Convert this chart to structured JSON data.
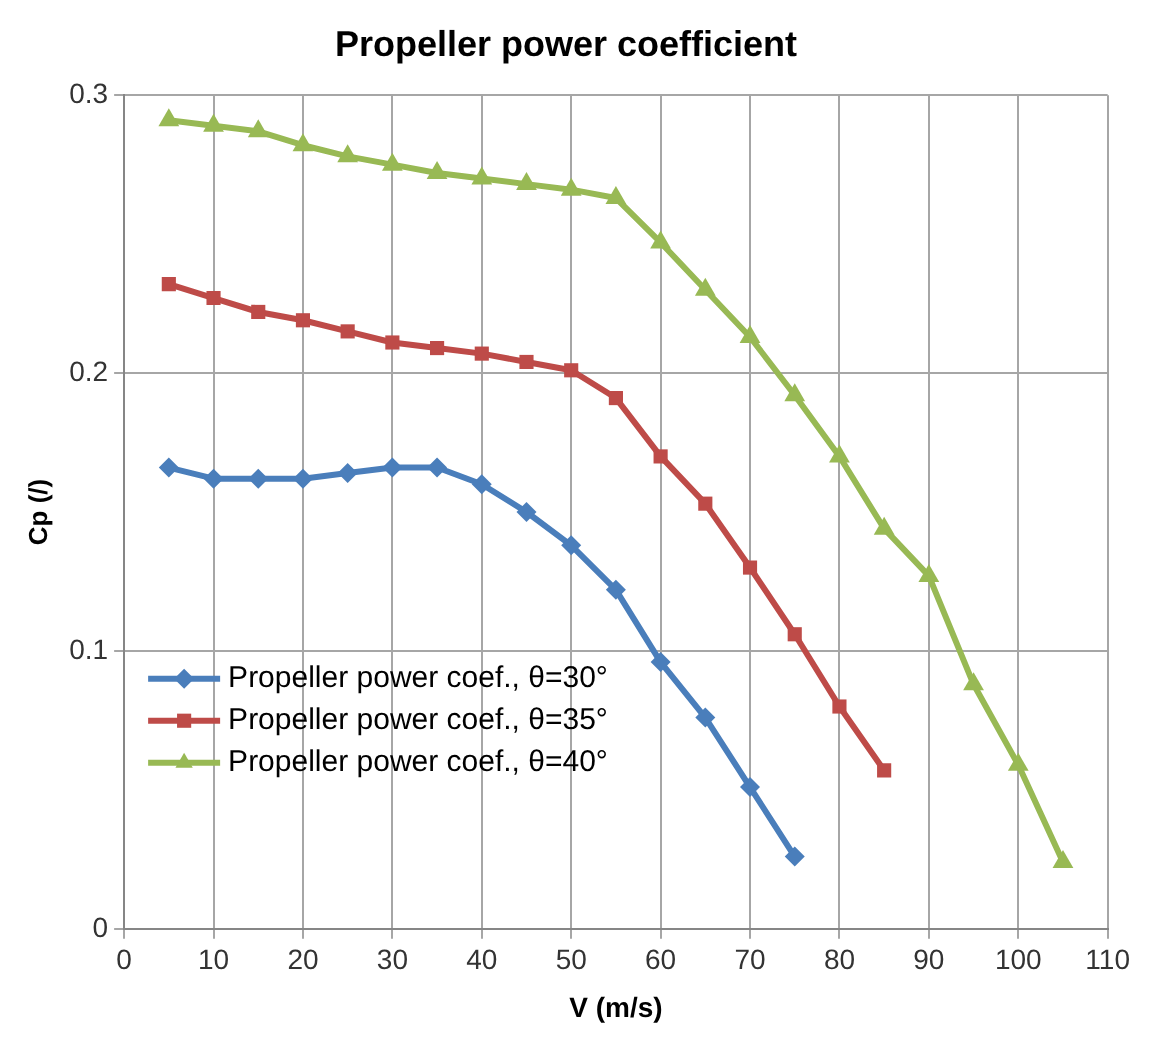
{
  "chart_data": {
    "type": "line",
    "title": "Propeller power coefficient",
    "xlabel": "V (m/s)",
    "ylabel": "Cp (/)",
    "xlim": [
      0,
      110
    ],
    "xticks": [
      0,
      10,
      20,
      30,
      40,
      50,
      60,
      70,
      80,
      90,
      100,
      110
    ],
    "ylim": [
      0,
      0.3
    ],
    "yticks": [
      0,
      0.1,
      0.2,
      0.3
    ],
    "grid": true,
    "legend": "bottom left",
    "line_style": "solid",
    "series": [
      {
        "name": "Propeller power coef., θ=30°",
        "color": "#4a7ebb",
        "marker": "diamond",
        "x": [
          5,
          10,
          15,
          20,
          25,
          30,
          35,
          40,
          45,
          50,
          55,
          60,
          65,
          70,
          75
        ],
        "values": [
          0.166,
          0.162,
          0.162,
          0.162,
          0.164,
          0.166,
          0.166,
          0.16,
          0.15,
          0.138,
          0.122,
          0.096,
          0.076,
          0.051,
          0.026
        ]
      },
      {
        "name": "Propeller power coef., θ=35°",
        "color": "#be4b48",
        "marker": "square",
        "x": [
          5,
          10,
          15,
          20,
          25,
          30,
          35,
          40,
          45,
          50,
          55,
          60,
          65,
          70,
          75,
          80,
          85
        ],
        "values": [
          0.232,
          0.227,
          0.222,
          0.219,
          0.215,
          0.211,
          0.209,
          0.207,
          0.204,
          0.201,
          0.191,
          0.17,
          0.153,
          0.13,
          0.106,
          0.08,
          0.057
        ]
      },
      {
        "name": "Propeller power coef., θ=40°",
        "color": "#98b954",
        "marker": "triangle",
        "x": [
          5,
          10,
          15,
          20,
          25,
          30,
          35,
          40,
          45,
          50,
          55,
          60,
          65,
          70,
          75,
          80,
          85,
          90,
          95,
          100,
          105
        ],
        "values": [
          0.291,
          0.289,
          0.287,
          0.282,
          0.278,
          0.275,
          0.272,
          0.27,
          0.268,
          0.266,
          0.263,
          0.247,
          0.23,
          0.213,
          0.192,
          0.17,
          0.144,
          0.127,
          0.088,
          0.059,
          0.024
        ]
      }
    ]
  }
}
